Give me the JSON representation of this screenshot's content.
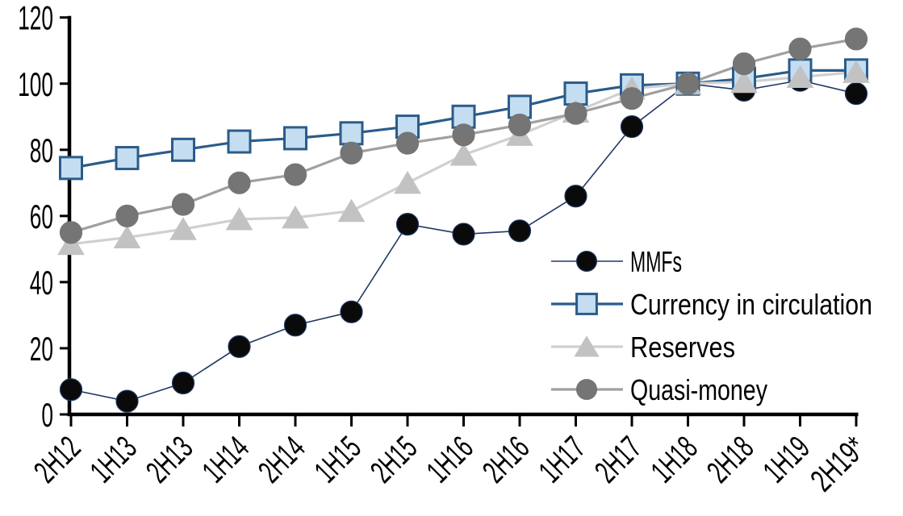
{
  "chart_data": {
    "type": "line",
    "title": "",
    "xlabel": "",
    "ylabel": "",
    "categories": [
      "2H12",
      "1H13",
      "2H13",
      "1H14",
      "2H14",
      "1H15",
      "2H15",
      "1H16",
      "2H16",
      "1H17",
      "2H17",
      "1H18",
      "2H18",
      "1H19",
      "2H19*"
    ],
    "series": [
      {
        "name": "MMFs",
        "marker": "circle",
        "line_color": "#1f3864",
        "marker_fill": "#0a0a0a",
        "marker_stroke": "#1f3864",
        "line_width": 1.6,
        "values": [
          7.5,
          4,
          9.5,
          20.5,
          27,
          31,
          57.5,
          54.5,
          55.5,
          66,
          87,
          100,
          98,
          101,
          97
        ]
      },
      {
        "name": "Currency in circulation",
        "marker": "square",
        "line_color": "#2a5c8a",
        "marker_fill": "#c5ddf1",
        "marker_stroke": "#2a5c8a",
        "line_width": 3.2,
        "values": [
          74.5,
          77.5,
          80,
          82.5,
          83.5,
          85,
          87,
          90,
          93,
          97,
          99.5,
          100,
          101.5,
          104,
          104
        ]
      },
      {
        "name": "Reserves",
        "marker": "triangle",
        "line_color": "#d0d0d0",
        "marker_fill": "#c2c2c2",
        "marker_stroke": "#c2c2c2",
        "line_width": 3.2,
        "values": [
          51.5,
          53.5,
          56,
          59,
          59.5,
          61.5,
          70,
          78.5,
          84.5,
          91.5,
          98.5,
          100,
          100.5,
          102,
          103.5
        ]
      },
      {
        "name": "Quasi-money",
        "marker": "circle",
        "line_color": "#a0a0a0",
        "marker_fill": "#757575",
        "marker_stroke": "#757575",
        "line_width": 3.2,
        "values": [
          55,
          60,
          63.5,
          70,
          72.5,
          79,
          82,
          84.5,
          87.5,
          91,
          95.5,
          100,
          106,
          110.5,
          113.5
        ]
      }
    ],
    "yticks": [
      0,
      20,
      40,
      60,
      80,
      100,
      120
    ],
    "ylim": [
      0,
      120
    ],
    "axis_color": "#000000",
    "grid": false,
    "legend_position": "inside-right",
    "legend_order": [
      "MMFs",
      "Currency in circulation",
      "Reserves",
      "Quasi-money"
    ]
  }
}
